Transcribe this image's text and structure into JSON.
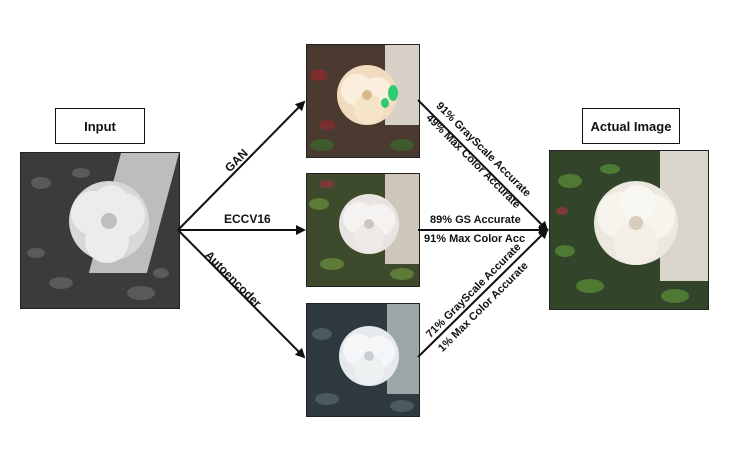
{
  "input_label": "Input",
  "actual_label": "Actual Image",
  "models": {
    "gan": "GAN",
    "eccv16": "ECCV16",
    "autoencoder": "Autoencoder"
  },
  "results": {
    "gan_line1": "91% GrayScale Accurate",
    "gan_line2": "49% Max Color Accurate",
    "eccv_line1": "89% GS Accurate",
    "eccv_line2": "91% Max Color Acc",
    "ae_line1": "71% GrayScale Accurate",
    "ae_line2": "1% Max Color Accurate"
  },
  "colors": {
    "foliage_gray": "#4a4a4a",
    "foliage_green": "#3e5a2c",
    "petal_white": "#f4f1ea",
    "gan_tint": "#f2dcc0",
    "gan_spot": "#2ecc71",
    "ae_tint": "#3a4a52"
  }
}
